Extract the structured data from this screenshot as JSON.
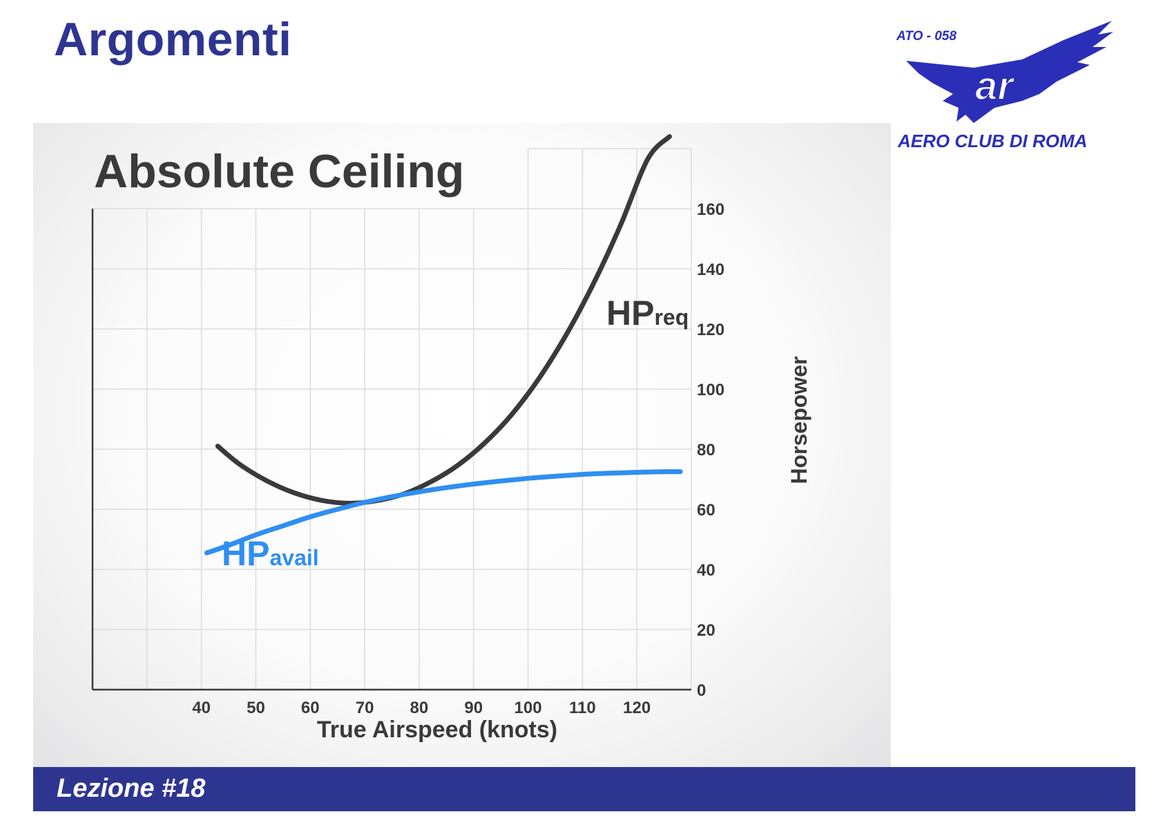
{
  "slide": {
    "title": "Argomenti",
    "footer": "Lezione #18"
  },
  "logo": {
    "code": "ATO - 058",
    "monogram": "ar",
    "name": "AERO CLUB DI ROMA",
    "color": "#2b2fb8"
  },
  "chart_data": {
    "type": "line",
    "title": "Absolute Ceiling",
    "xlabel": "True Airspeed (knots)",
    "ylabel": "Horsepower",
    "x_ticks": [
      40,
      50,
      60,
      70,
      80,
      90,
      100,
      110,
      120
    ],
    "y_ticks": [
      0,
      20,
      40,
      60,
      80,
      100,
      120,
      140,
      160
    ],
    "xlim": [
      20,
      130
    ],
    "ylim": [
      0,
      180
    ],
    "y_axis_side": "right",
    "grid": true,
    "series": [
      {
        "label_main": "HP",
        "label_sub": "req",
        "color": "#3a3a3c",
        "x": [
          43,
          47,
          52,
          57,
          62,
          67,
          72,
          77,
          82,
          87,
          92,
          97,
          102,
          107,
          112,
          117,
          122,
          126
        ],
        "y": [
          81,
          75,
          69.5,
          65.5,
          63,
          62,
          62.8,
          65,
          69,
          74.5,
          82,
          91.5,
          103.5,
          118,
          135,
          154.5,
          176.5,
          184
        ]
      },
      {
        "label_main": "HP",
        "label_sub": "avail",
        "color": "#2f8ff0",
        "x": [
          41,
          45,
          50,
          55,
          60,
          65,
          70,
          75,
          80,
          85,
          90,
          95,
          100,
          105,
          110,
          115,
          120,
          125,
          128
        ],
        "y": [
          45.5,
          48,
          51.5,
          54.5,
          57.5,
          60,
          62.3,
          64.2,
          65.8,
          67.2,
          68.4,
          69.4,
          70.3,
          71,
          71.6,
          72,
          72.3,
          72.5,
          72.5
        ]
      }
    ]
  }
}
